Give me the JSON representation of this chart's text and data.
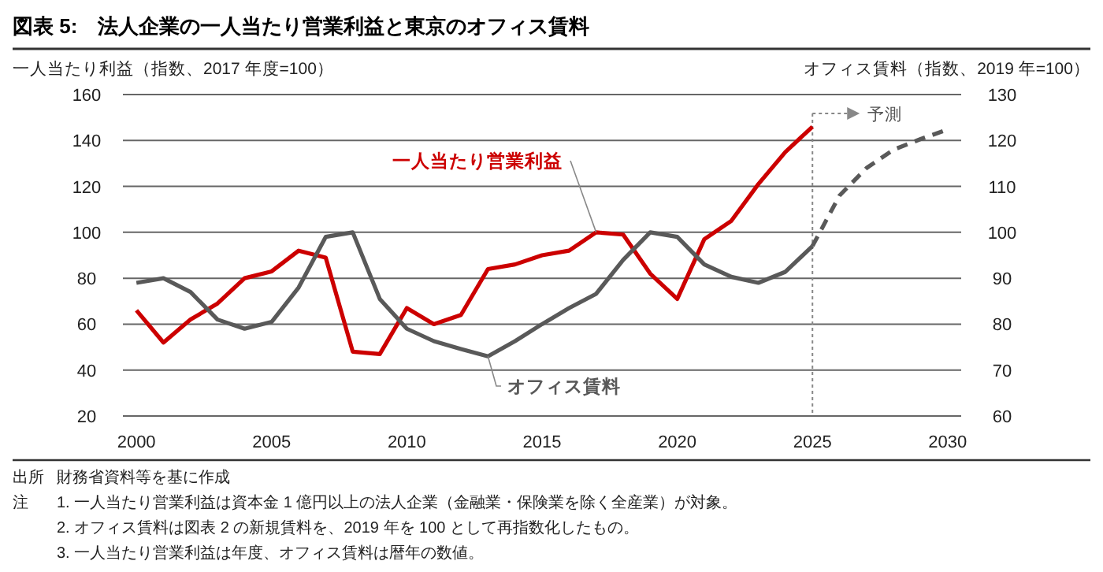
{
  "chart_data": {
    "type": "line",
    "title": "図表 5:　法人企業の一人当たり営業利益と東京のオフィス賃料",
    "ylabel": "一人当たり利益（指数、2017 年度=100）",
    "y2label": "オフィス賃料（指数、2019 年=100）",
    "xlim": [
      1999.5,
      2030.5
    ],
    "xticks": [
      2000,
      2005,
      2010,
      2015,
      2020,
      2025,
      2030
    ],
    "ylim": [
      20,
      160
    ],
    "yticks": [
      20,
      40,
      60,
      80,
      100,
      120,
      140,
      160
    ],
    "y2lim": [
      60,
      130
    ],
    "y2ticks": [
      60,
      70,
      80,
      90,
      100,
      110,
      120,
      130
    ],
    "grid": "y",
    "series": [
      {
        "name": "一人当たり営業利益",
        "color": "#cc0000",
        "line_style": "solid",
        "x": [
          2000,
          2001,
          2002,
          2003,
          2004,
          2005,
          2006,
          2007,
          2008,
          2009,
          2010,
          2011,
          2012,
          2013,
          2014,
          2015,
          2016,
          2017,
          2018,
          2019,
          2020,
          2021,
          2022,
          2023,
          2024,
          2025
        ],
        "values": [
          66,
          52,
          62,
          69,
          80,
          83,
          92,
          89,
          48,
          47,
          67,
          60,
          64,
          84,
          86,
          90,
          92,
          100,
          99,
          82,
          71,
          97,
          105,
          121,
          135,
          146
        ]
      },
      {
        "name": "オフィス賃料",
        "color": "#595959",
        "axis": "y2",
        "line_style": "solid",
        "x": [
          2000,
          2001,
          2002,
          2003,
          2004,
          2005,
          2006,
          2007,
          2008,
          2009,
          2010,
          2011,
          2012,
          2013,
          2014,
          2015,
          2016,
          2017,
          2018,
          2019,
          2020,
          2021,
          2022,
          2023,
          2024,
          2025
        ],
        "values": [
          89,
          90,
          87,
          81,
          79,
          80.5,
          88,
          99,
          100,
          85.5,
          79,
          76.3,
          74.6,
          73,
          76.3,
          80,
          83.5,
          86.6,
          94,
          100,
          99,
          93,
          90.3,
          89,
          91.4,
          97
        ]
      },
      {
        "color": "#595959",
        "axis": "y2",
        "line_style": "dashed",
        "x": [
          2025,
          2026,
          2027,
          2028,
          2029,
          2030
        ],
        "values": [
          97,
          108,
          114,
          118,
          120.3,
          122.4
        ]
      }
    ],
    "ref_lines": [
      {
        "axis": "x",
        "value": 2025,
        "label": "予測",
        "color": "#888888",
        "line_style": "dotted"
      }
    ],
    "annotations": [
      "出所",
      "財務省資料等を基に作成",
      "注",
      "1.  一人当たり営業利益は資本金 1 億円以上の法人企業（金融業・保険業を除く全産業）が対象。",
      "2.  オフィス賃料は図表 2 の新規賃料を、2019 年を 100 として再指数化したもの。",
      "3.  一人当たり営業利益は年度、オフィス賃料は暦年の数値。"
    ]
  }
}
